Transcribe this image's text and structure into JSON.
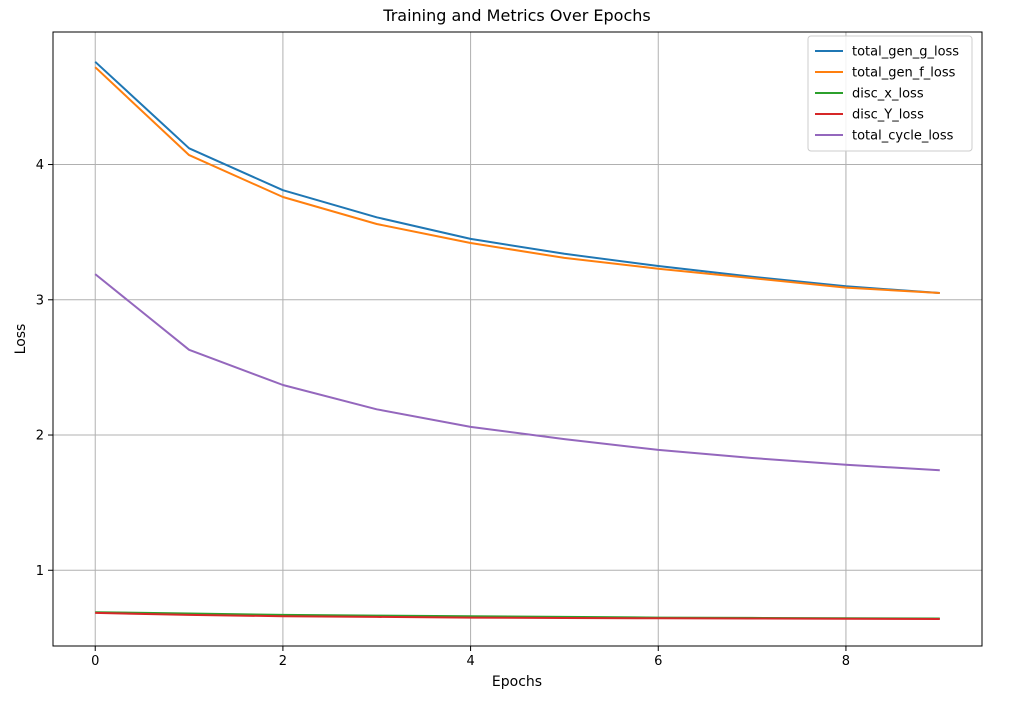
{
  "chart_data": {
    "type": "line",
    "title": "Training and  Metrics Over Epochs",
    "xlabel": "Epochs",
    "ylabel": "Loss",
    "x": [
      0,
      1,
      2,
      3,
      4,
      5,
      6,
      7,
      8,
      9
    ],
    "xlim": [
      -0.45,
      9.45
    ],
    "ylim": [
      0.44,
      4.98
    ],
    "xticks": [
      0,
      2,
      4,
      6,
      8
    ],
    "yticks": [
      1,
      2,
      3,
      4
    ],
    "grid": true,
    "legend_position": "top-right",
    "series": [
      {
        "name": "total_gen_g_loss",
        "color": "#1f77b4",
        "values": [
          4.76,
          4.12,
          3.81,
          3.61,
          3.45,
          3.34,
          3.25,
          3.17,
          3.1,
          3.05
        ]
      },
      {
        "name": "total_gen_f_loss",
        "color": "#ff7f0e",
        "values": [
          4.72,
          4.07,
          3.76,
          3.56,
          3.42,
          3.31,
          3.23,
          3.16,
          3.09,
          3.05
        ]
      },
      {
        "name": "disc_x_loss",
        "color": "#2ca02c",
        "values": [
          0.69,
          0.68,
          0.67,
          0.665,
          0.66,
          0.655,
          0.65,
          0.648,
          0.645,
          0.643
        ]
      },
      {
        "name": "disc_Y_loss",
        "color": "#d62728",
        "values": [
          0.685,
          0.67,
          0.66,
          0.655,
          0.65,
          0.647,
          0.645,
          0.643,
          0.641,
          0.64
        ]
      },
      {
        "name": "total_cycle_loss",
        "color": "#9467bd",
        "values": [
          3.19,
          2.63,
          2.37,
          2.19,
          2.06,
          1.97,
          1.89,
          1.83,
          1.78,
          1.74
        ]
      }
    ]
  }
}
